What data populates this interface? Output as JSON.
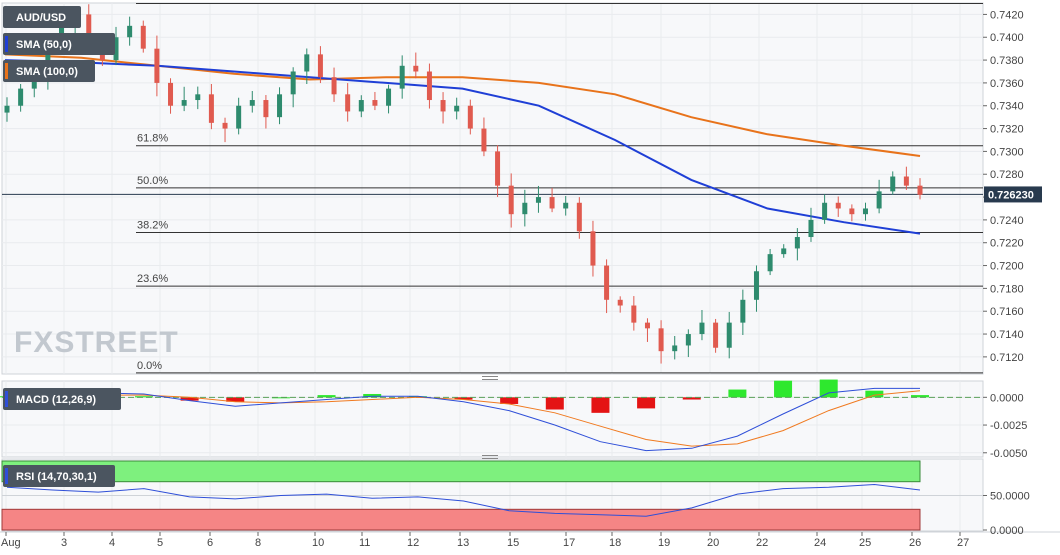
{
  "colors": {
    "up": "#2e8b6e",
    "down": "#e05a4f",
    "sma50": "#1f3fd6",
    "sma100": "#e8731b",
    "macd_line": "#2f4fd8",
    "signal_line": "#f07a20",
    "hist_pos": "#2ee82e",
    "hist_neg": "#e41414",
    "rsi_line": "#2f4fd8",
    "rsi_upper_band": "#7ef07e",
    "rsi_lower_band": "#f58585",
    "price_tag": "#283a4e"
  },
  "chart_data": [
    {
      "type": "candlestick",
      "title": "AUD/USD",
      "x_ticks": [
        "Aug",
        "3",
        "4",
        "5",
        "6",
        "8",
        "10",
        "11",
        "12",
        "13",
        "15",
        "17",
        "18",
        "19",
        "20",
        "22",
        "24",
        "25",
        "26",
        "27"
      ],
      "y_ticks": [
        "0.7120",
        "0.7140",
        "0.7160",
        "0.7180",
        "0.7200",
        "0.7220",
        "0.7240",
        "0.7260",
        "0.7280",
        "0.7300",
        "0.7320",
        "0.7340",
        "0.7360",
        "0.7380",
        "0.7400",
        "0.7420"
      ],
      "ylim": [
        0.7105,
        0.743
      ],
      "last_price": "0.726230",
      "indicators": [
        "SMA (50,0)",
        "SMA (100,0)"
      ],
      "fibonacci": [
        {
          "label": "61.8%",
          "value": 0.7305
        },
        {
          "label": "50.0%",
          "value": 0.7268
        },
        {
          "label": "38.2%",
          "value": 0.7229
        },
        {
          "label": "23.6%",
          "value": 0.7182
        },
        {
          "label": "0.0%",
          "value": 0.7106
        }
      ],
      "ohlc_path": [
        0.734,
        0.7355,
        0.7365,
        0.7395,
        0.741,
        0.742,
        0.7395,
        0.738,
        0.74,
        0.741,
        0.739,
        0.736,
        0.734,
        0.7345,
        0.735,
        0.7325,
        0.732,
        0.734,
        0.7345,
        0.733,
        0.735,
        0.737,
        0.7385,
        0.7365,
        0.735,
        0.7335,
        0.7345,
        0.734,
        0.7355,
        0.7375,
        0.737,
        0.7345,
        0.7335,
        0.734,
        0.732,
        0.73,
        0.727,
        0.7245,
        0.7255,
        0.726,
        0.725,
        0.7255,
        0.723,
        0.72,
        0.717,
        0.7165,
        0.715,
        0.7145,
        0.7125,
        0.713,
        0.714,
        0.715,
        0.7128,
        0.715,
        0.717,
        0.7195,
        0.721,
        0.7215,
        0.7225,
        0.724,
        0.7255,
        0.725,
        0.7245,
        0.725,
        0.7265,
        0.7278,
        0.727,
        0.7262
      ],
      "sma50": [
        0.738,
        0.7378,
        0.7375,
        0.737,
        0.7365,
        0.736,
        0.7355,
        0.734,
        0.731,
        0.7275,
        0.725,
        0.7238,
        0.7228
      ],
      "sma100": [
        0.7385,
        0.7382,
        0.7375,
        0.7368,
        0.7363,
        0.7365,
        0.7365,
        0.736,
        0.735,
        0.733,
        0.7315,
        0.7305,
        0.7296
      ]
    },
    {
      "type": "line",
      "title": "MACD (12,26,9)",
      "y_ticks": [
        "0.0000",
        "-0.0025",
        "-0.0050"
      ],
      "ylim": [
        -0.0052,
        0.0012
      ],
      "macd": [
        0.0001,
        0.0002,
        0.0004,
        0.0003,
        -0.0003,
        -0.0008,
        -0.0005,
        -0.0002,
        0.0001,
        0.0001,
        -0.0004,
        -0.0012,
        -0.0025,
        -0.004,
        -0.0048,
        -0.0046,
        -0.0035,
        -0.0015,
        0.0004,
        0.0008,
        0.0008
      ],
      "signal": [
        0.0,
        0.0001,
        0.0002,
        0.0002,
        0.0,
        -0.0004,
        -0.0005,
        -0.0004,
        -0.0002,
        0.0,
        -0.0002,
        -0.0006,
        -0.0014,
        -0.0026,
        -0.0038,
        -0.0044,
        -0.0042,
        -0.003,
        -0.0012,
        0.0002,
        0.0006
      ],
      "histogram": [
        0.0001,
        0.0001,
        0.0002,
        0.0001,
        -0.0003,
        -0.0004,
        0.0,
        0.0002,
        0.0003,
        0.0001,
        -0.0002,
        -0.0006,
        -0.0011,
        -0.0014,
        -0.001,
        -0.0002,
        0.0007,
        0.0015,
        0.0016,
        0.0006,
        0.0002
      ]
    },
    {
      "type": "line",
      "title": "RSI (14,70,30,1)",
      "y_ticks": [
        "50.0000",
        "0.0000"
      ],
      "ylim": [
        0,
        100
      ],
      "bands": [
        30,
        70
      ],
      "rsi": [
        62,
        58,
        55,
        60,
        48,
        45,
        50,
        52,
        46,
        48,
        42,
        28,
        24,
        22,
        20,
        32,
        52,
        60,
        62,
        66,
        58
      ]
    }
  ],
  "watermark": "FXSTREET"
}
